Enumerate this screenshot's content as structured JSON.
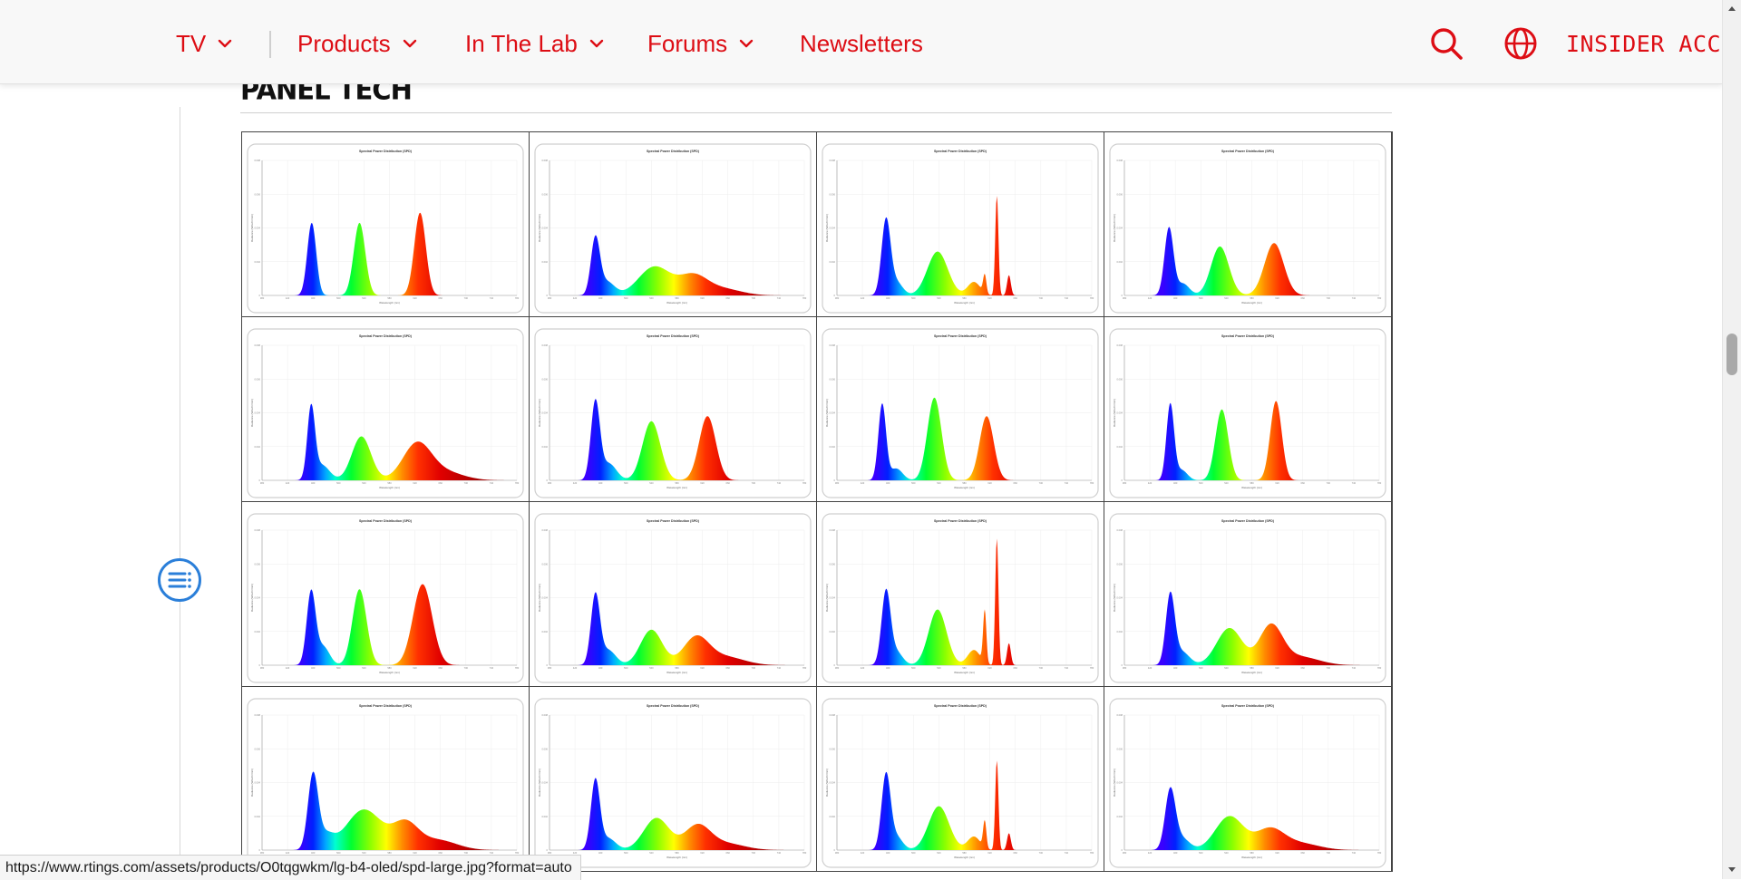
{
  "nav": {
    "items": [
      {
        "label": "TV",
        "dropdown": true
      },
      {
        "label": "Products",
        "dropdown": true
      },
      {
        "label": "In The Lab",
        "dropdown": true
      },
      {
        "label": "Forums",
        "dropdown": true
      },
      {
        "label": "Newsletters",
        "dropdown": false
      }
    ],
    "search_icon": "search-icon",
    "language_icon": "globe-icon",
    "insider_label": "INSIDER ACCESS"
  },
  "section": {
    "title": "PANEL TECH"
  },
  "spd_chart": {
    "title": "Spectral Power Distribution (SPD)",
    "xlabel": "Wavelength (nm)",
    "ylabel": "Radiance (W/sr/m²/nm)",
    "x_ticks": [
      "380",
      "420",
      "460",
      "500",
      "540",
      "580",
      "620",
      "660",
      "700",
      "740",
      "780"
    ],
    "y_ticks": [
      "0",
      "0.002",
      "0.004",
      "0.006",
      "0.008"
    ]
  },
  "chart_data": {
    "type": "area",
    "title": "Spectral Power Distribution (SPD)",
    "xlabel": "Wavelength (nm)",
    "ylabel": "Radiance (W/sr/m²/nm)",
    "xlim": [
      380,
      780
    ],
    "ylim": [
      0,
      0.008
    ],
    "grid": true,
    "panels": [
      {
        "peaks": [
          [
            458,
            0.0043,
            7
          ],
          [
            533,
            0.0043,
            9
          ],
          [
            628,
            0.0049,
            9
          ]
        ]
      },
      {
        "peaks": [
          [
            452,
            0.0033,
            7
          ],
          [
            470,
            0.0008,
            12
          ],
          [
            545,
            0.0017,
            25
          ],
          [
            605,
            0.0011,
            22
          ],
          [
            650,
            0.0004,
            30
          ]
        ]
      },
      {
        "peaks": [
          [
            457,
            0.0044,
            7
          ],
          [
            473,
            0.0008,
            10
          ],
          [
            538,
            0.0026,
            16
          ],
          [
            595,
            0.0008,
            10
          ],
          [
            612,
            0.0011,
            2.5
          ],
          [
            631,
            0.0059,
            2.5
          ],
          [
            650,
            0.0012,
            3
          ]
        ]
      },
      {
        "peaks": [
          [
            450,
            0.004,
            7
          ],
          [
            472,
            0.0007,
            10
          ],
          [
            530,
            0.0029,
            14
          ],
          [
            615,
            0.0031,
            15
          ]
        ]
      },
      {
        "peaks": [
          [
            457,
            0.0042,
            6
          ],
          [
            474,
            0.0009,
            12
          ],
          [
            536,
            0.0026,
            15
          ],
          [
            623,
            0.0021,
            22
          ],
          [
            665,
            0.0005,
            30
          ]
        ]
      },
      {
        "peaks": [
          [
            452,
            0.0046,
            7
          ],
          [
            473,
            0.001,
            12
          ],
          [
            540,
            0.0035,
            14
          ],
          [
            628,
            0.0038,
            13
          ]
        ]
      },
      {
        "peaks": [
          [
            451,
            0.0045,
            6
          ],
          [
            473,
            0.0007,
            10
          ],
          [
            533,
            0.0049,
            11
          ],
          [
            615,
            0.0038,
            11
          ]
        ]
      },
      {
        "peaks": [
          [
            452,
            0.0045,
            6
          ],
          [
            470,
            0.0006,
            9
          ],
          [
            533,
            0.0042,
            10
          ],
          [
            618,
            0.0047,
            9
          ]
        ]
      },
      {
        "peaks": [
          [
            457,
            0.0043,
            7
          ],
          [
            476,
            0.0011,
            10
          ],
          [
            533,
            0.0045,
            11
          ],
          [
            632,
            0.0048,
            15
          ]
        ]
      },
      {
        "peaks": [
          [
            452,
            0.0041,
            7
          ],
          [
            472,
            0.0009,
            12
          ],
          [
            540,
            0.0021,
            17
          ],
          [
            610,
            0.0016,
            20
          ],
          [
            655,
            0.0005,
            30
          ]
        ]
      },
      {
        "peaks": [
          [
            457,
            0.0043,
            7
          ],
          [
            473,
            0.0008,
            10
          ],
          [
            538,
            0.0033,
            14
          ],
          [
            595,
            0.0009,
            10
          ],
          [
            612,
            0.0031,
            2.5
          ],
          [
            631,
            0.0075,
            2.5
          ],
          [
            650,
            0.0013,
            3
          ]
        ]
      },
      {
        "peaks": [
          [
            452,
            0.0041,
            7
          ],
          [
            470,
            0.0008,
            12
          ],
          [
            545,
            0.0022,
            20
          ],
          [
            610,
            0.0023,
            18
          ],
          [
            655,
            0.0005,
            30
          ]
        ]
      },
      {
        "peaks": [
          [
            460,
            0.0044,
            8
          ],
          [
            480,
            0.0008,
            12
          ],
          [
            540,
            0.0024,
            28
          ],
          [
            605,
            0.0015,
            20
          ],
          [
            655,
            0.0006,
            30
          ]
        ]
      },
      {
        "peaks": [
          [
            452,
            0.0041,
            7
          ],
          [
            472,
            0.0007,
            12
          ],
          [
            548,
            0.0019,
            20
          ],
          [
            612,
            0.0014,
            20
          ],
          [
            655,
            0.0004,
            30
          ]
        ]
      },
      {
        "peaks": [
          [
            457,
            0.0044,
            7
          ],
          [
            473,
            0.0008,
            10
          ],
          [
            540,
            0.0026,
            16
          ],
          [
            595,
            0.0008,
            10
          ],
          [
            612,
            0.0016,
            2.5
          ],
          [
            631,
            0.0053,
            2.5
          ],
          [
            650,
            0.001,
            3
          ]
        ]
      },
      {
        "peaks": [
          [
            452,
            0.0035,
            8
          ],
          [
            470,
            0.0007,
            12
          ],
          [
            545,
            0.002,
            22
          ],
          [
            608,
            0.0012,
            22
          ],
          [
            655,
            0.0004,
            30
          ]
        ]
      }
    ]
  },
  "status_url": "https://www.rtings.com/assets/products/O0tqgwkm/lg-b4-oled/spd-large.jpg?format=auto"
}
